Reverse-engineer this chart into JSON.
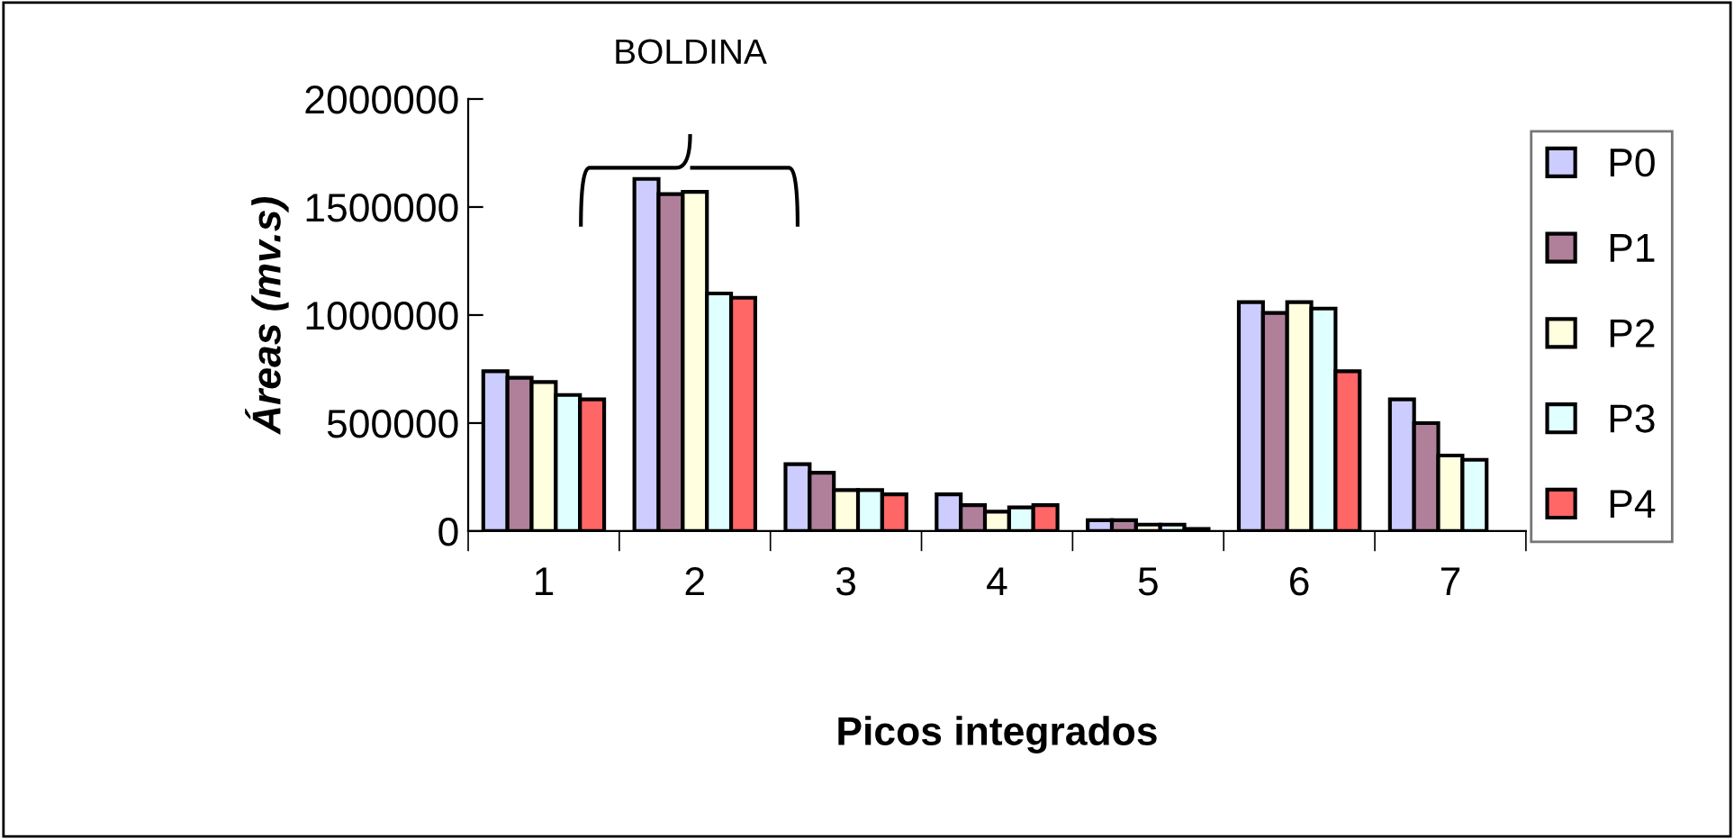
{
  "chart_data": {
    "type": "bar",
    "xlabel": "Picos integrados",
    "ylabel": "Áreas (mv.s)",
    "categories": [
      "1",
      "2",
      "3",
      "4",
      "5",
      "6",
      "7"
    ],
    "series": [
      {
        "name": "P0",
        "color": "#ccccff",
        "values": [
          740000,
          1630000,
          310000,
          170000,
          50000,
          1060000,
          610000
        ]
      },
      {
        "name": "P1",
        "color": "#b0809a",
        "values": [
          710000,
          1560000,
          270000,
          120000,
          50000,
          1010000,
          500000
        ]
      },
      {
        "name": "P2",
        "color": "#ffffe0",
        "values": [
          690000,
          1570000,
          190000,
          90000,
          30000,
          1060000,
          350000
        ]
      },
      {
        "name": "P3",
        "color": "#e0ffff",
        "values": [
          630000,
          1100000,
          190000,
          110000,
          30000,
          1030000,
          330000
        ]
      },
      {
        "name": "P4",
        "color": "#ff6666",
        "values": [
          610000,
          1080000,
          170000,
          120000,
          10000,
          740000,
          null
        ]
      }
    ],
    "ylim": [
      0,
      2000000
    ],
    "yticks": [
      0,
      500000,
      1000000,
      1500000,
      2000000
    ],
    "grid": false,
    "legend": "right",
    "annotations": [
      "BOLDINA"
    ]
  }
}
